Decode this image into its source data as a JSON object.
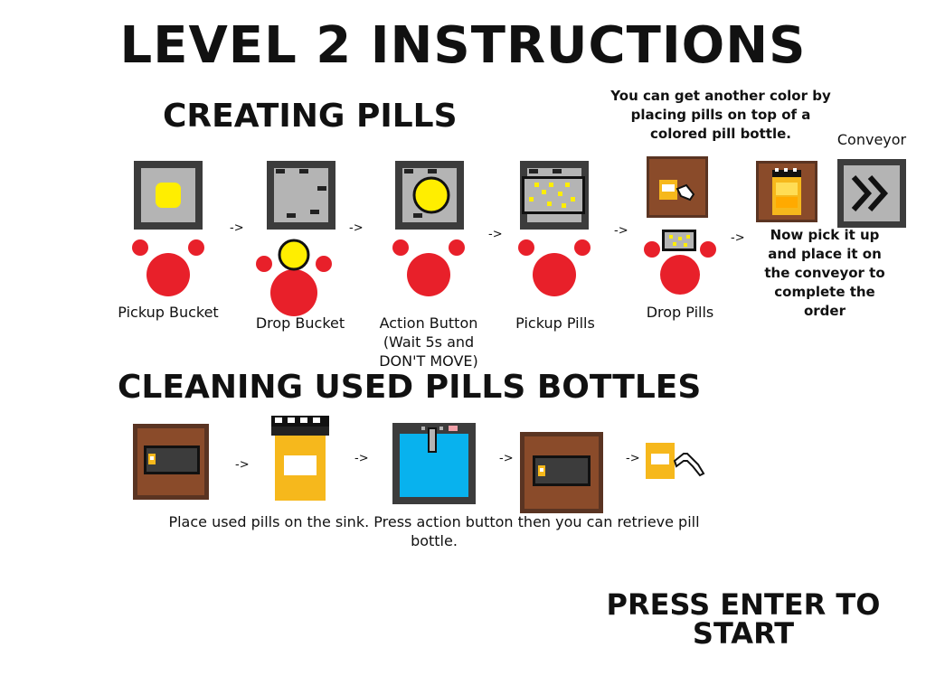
{
  "title": "LEVEL 2 INSTRUCTIONS",
  "section_creating": "CREATING PILLS",
  "section_cleaning": "CLEANING USED PILLS BOTTLES",
  "arrow": "->",
  "steps": [
    {
      "label": "Pickup Bucket"
    },
    {
      "label": "Drop Bucket"
    },
    {
      "label": "Action Button (Wait 5s and DON'T MOVE)"
    },
    {
      "label": "Pickup Pills"
    },
    {
      "label": "Drop Pills"
    }
  ],
  "color_tip": "You can get another color by placing pills on top of a colored pill bottle.",
  "conveyor_label": "Conveyor",
  "conveyor_tip": "Now pick it up and place it on the conveyor to complete the order",
  "cleaning_text": "Place used pills on the sink. Press action button then you can retrieve pill bottle.",
  "press_enter": "PRESS ENTER TO START",
  "colors": {
    "machine_border": "#3c3c3c",
    "machine_fill": "#b4b4b4",
    "pill_yellow": "#ffee00",
    "player_red": "#e8202a",
    "wood": "#8a4b2a",
    "wood_border": "#5a3422",
    "bottle": "#f6b81c",
    "sink_blue": "#08b2ee"
  }
}
